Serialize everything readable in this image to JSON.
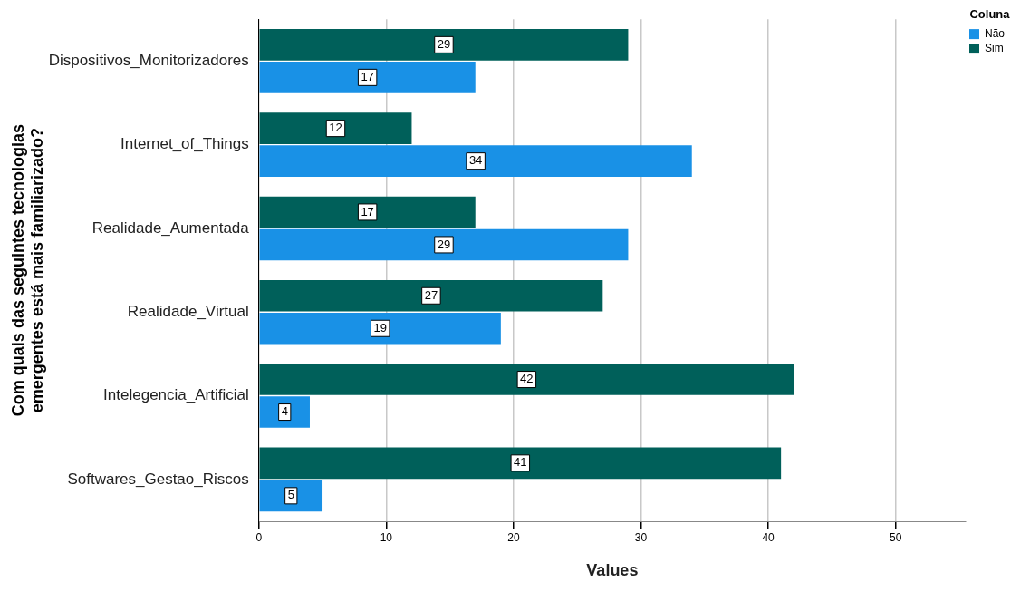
{
  "chart_data": {
    "type": "bar",
    "orientation": "horizontal",
    "ylabel": "Com quais das seguintes tecnologias emergentes está mais familiarizado?",
    "xlabel": "Values",
    "legend_title": "Coluna",
    "categories": [
      "Dispositivos_Monitorizadores",
      "Internet_of_Things",
      "Realidade_Aumentada",
      "Realidade_Virtual",
      "Intelegencia_Artificial",
      "Softwares_Gestao_Riscos"
    ],
    "series": [
      {
        "name": "Sim",
        "color": "#00605a",
        "values": [
          29,
          12,
          17,
          27,
          42,
          41
        ]
      },
      {
        "name": "Não",
        "color": "#1991e6",
        "values": [
          17,
          34,
          29,
          19,
          4,
          5
        ]
      }
    ],
    "xlim": [
      0,
      55.5
    ],
    "xticks": [
      0,
      10,
      20,
      30,
      40,
      50
    ],
    "grid": "x",
    "legend": "top right",
    "data_labels": true
  }
}
